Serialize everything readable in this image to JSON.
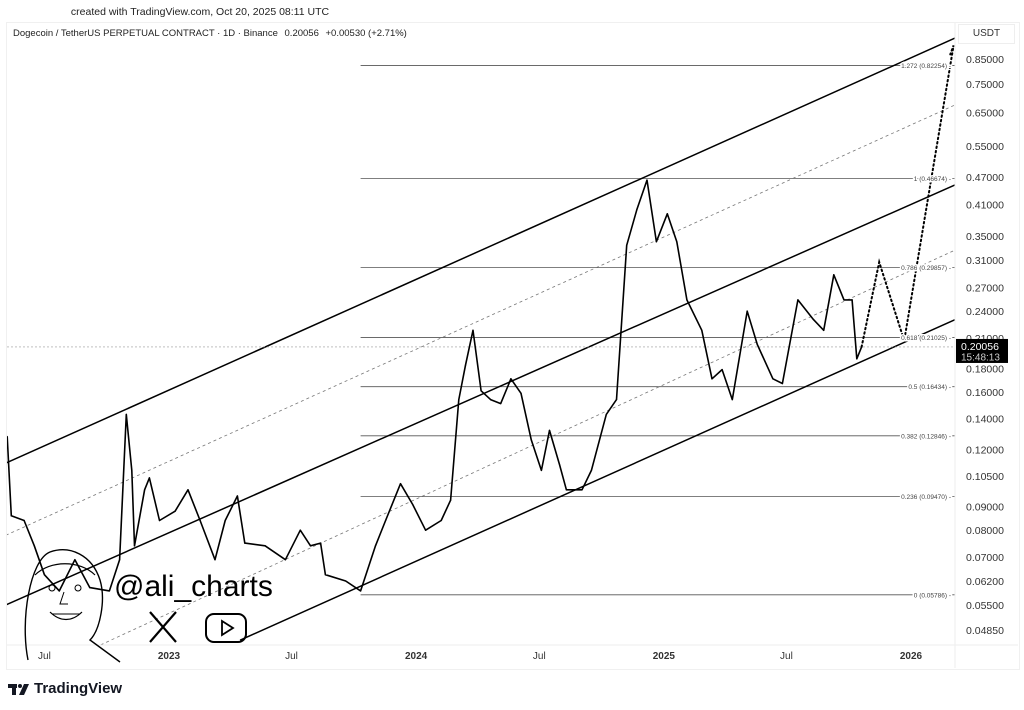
{
  "header": {
    "created": "created with TradingView.com, Oct 20, 2025 08:11 UTC",
    "symbol": "Dogecoin / TetherUS PERPETUAL CONTRACT · 1D · Binance",
    "price": "0.20056",
    "change": "+0.00530 (+2.71%)"
  },
  "currency": "USDT",
  "price_label": {
    "value": "0.20056",
    "countdown": "15:48:13"
  },
  "watermark": {
    "handle": "@ali_charts",
    "icons": [
      "x-logo-icon",
      "youtube-icon",
      "face-drawing"
    ]
  },
  "brand": "TradingView",
  "chart_data": {
    "type": "line",
    "scale": "log",
    "ylim": [
      0.0455,
      0.95
    ],
    "xlim": [
      "2022-05-05",
      "2026-03-07"
    ],
    "y_ticks": [
      0.85,
      0.75,
      0.65,
      0.55,
      0.47,
      0.41,
      0.35,
      0.31,
      0.27,
      0.24,
      0.21,
      0.18,
      0.16,
      0.14,
      0.12,
      0.105,
      0.09,
      0.08,
      0.07,
      0.062,
      0.055,
      0.0485
    ],
    "y_tick_labels": [
      "0.85000",
      "0.75000",
      "0.65000",
      "0.55000",
      "0.47000",
      "0.41000",
      "0.35000",
      "0.31000",
      "0.27000",
      "0.24000",
      "0.21000",
      "0.18000",
      "0.16000",
      "0.14000",
      "0.12000",
      "0.10500",
      "0.09000",
      "0.08000",
      "0.07000",
      "0.06200",
      "0.05500",
      "0.04850"
    ],
    "x_ticks": [
      {
        "date": "2022-07-01",
        "label": "Jul",
        "bold": false
      },
      {
        "date": "2023-01-01",
        "label": "2023",
        "bold": true
      },
      {
        "date": "2023-07-01",
        "label": "Jul",
        "bold": false
      },
      {
        "date": "2024-01-01",
        "label": "2024",
        "bold": true
      },
      {
        "date": "2024-07-01",
        "label": "Jul",
        "bold": false
      },
      {
        "date": "2025-01-01",
        "label": "2025",
        "bold": true
      },
      {
        "date": "2025-07-01",
        "label": "Jul",
        "bold": false
      },
      {
        "date": "2026-01-01",
        "label": "2026",
        "bold": true
      }
    ],
    "series": [
      {
        "values": [
          [
            "2022-05-07",
            0.128
          ],
          [
            "2022-05-13",
            0.086
          ],
          [
            "2022-06-01",
            0.084
          ],
          [
            "2022-06-16",
            0.074
          ],
          [
            "2022-07-01",
            0.064
          ],
          [
            "2022-07-23",
            0.059
          ],
          [
            "2022-08-15",
            0.069
          ],
          [
            "2022-09-06",
            0.06
          ],
          [
            "2022-10-05",
            0.059
          ],
          [
            "2022-10-20",
            0.069
          ],
          [
            "2022-10-30",
            0.143
          ],
          [
            "2022-11-07",
            0.108
          ],
          [
            "2022-11-11",
            0.074
          ],
          [
            "2022-11-26",
            0.098
          ],
          [
            "2022-12-03",
            0.104
          ],
          [
            "2022-12-18",
            0.084
          ],
          [
            "2023-01-10",
            0.088
          ],
          [
            "2023-01-29",
            0.098
          ],
          [
            "2023-02-16",
            0.084
          ],
          [
            "2023-03-10",
            0.069
          ],
          [
            "2023-03-25",
            0.084
          ],
          [
            "2023-04-12",
            0.095
          ],
          [
            "2023-04-23",
            0.075
          ],
          [
            "2023-05-23",
            0.074
          ],
          [
            "2023-06-22",
            0.069
          ],
          [
            "2023-07-14",
            0.08
          ],
          [
            "2023-07-29",
            0.074
          ],
          [
            "2023-08-13",
            0.075
          ],
          [
            "2023-08-20",
            0.064
          ],
          [
            "2023-09-19",
            0.062
          ],
          [
            "2023-10-11",
            0.059
          ],
          [
            "2023-11-02",
            0.074
          ],
          [
            "2023-11-17",
            0.084
          ],
          [
            "2023-12-09",
            0.101
          ],
          [
            "2023-12-27",
            0.091
          ],
          [
            "2024-01-15",
            0.08
          ],
          [
            "2024-02-07",
            0.084
          ],
          [
            "2024-02-21",
            0.093
          ],
          [
            "2024-03-04",
            0.154
          ],
          [
            "2024-03-14",
            0.183
          ],
          [
            "2024-03-25",
            0.218
          ],
          [
            "2024-04-06",
            0.161
          ],
          [
            "2024-04-20",
            0.154
          ],
          [
            "2024-05-05",
            0.151
          ],
          [
            "2024-05-20",
            0.171
          ],
          [
            "2024-06-04",
            0.159
          ],
          [
            "2024-06-19",
            0.126
          ],
          [
            "2024-07-04",
            0.108
          ],
          [
            "2024-07-16",
            0.132
          ],
          [
            "2024-07-31",
            0.111
          ],
          [
            "2024-08-10",
            0.098
          ],
          [
            "2024-09-02",
            0.098
          ],
          [
            "2024-09-16",
            0.108
          ],
          [
            "2024-10-08",
            0.143
          ],
          [
            "2024-10-23",
            0.154
          ],
          [
            "2024-11-07",
            0.334
          ],
          [
            "2024-11-22",
            0.399
          ],
          [
            "2024-12-07",
            0.463
          ],
          [
            "2024-12-21",
            0.34
          ],
          [
            "2025-01-06",
            0.391
          ],
          [
            "2025-01-20",
            0.34
          ],
          [
            "2025-02-04",
            0.254
          ],
          [
            "2025-02-26",
            0.218
          ],
          [
            "2025-03-13",
            0.171
          ],
          [
            "2025-03-28",
            0.179
          ],
          [
            "2025-04-12",
            0.154
          ],
          [
            "2025-05-04",
            0.24
          ],
          [
            "2025-05-19",
            0.203
          ],
          [
            "2025-06-11",
            0.171
          ],
          [
            "2025-06-25",
            0.167
          ],
          [
            "2025-07-18",
            0.254
          ],
          [
            "2025-08-10",
            0.23
          ],
          [
            "2025-08-25",
            0.218
          ],
          [
            "2025-09-09",
            0.288
          ],
          [
            "2025-09-24",
            0.254
          ],
          [
            "2025-10-06",
            0.254
          ],
          [
            "2025-10-13",
            0.189
          ],
          [
            "2025-10-20",
            0.2006
          ]
        ]
      }
    ],
    "projection": [
      [
        "2025-10-20",
        0.2006
      ],
      [
        "2025-11-15",
        0.307
      ],
      [
        "2025-12-22",
        0.207
      ],
      [
        "2026-03-05",
        0.91
      ],
      [
        "2026-02-28",
        0.87
      ]
    ],
    "channel_lines": [
      {
        "style": "solid",
        "from": [
          "2022-05-05",
          0.112
        ],
        "to": [
          "2026-03-07",
          0.944
        ]
      },
      {
        "style": "solid",
        "from": [
          "2022-05-05",
          0.055
        ],
        "to": [
          "2026-03-07",
          0.452
        ]
      },
      {
        "style": "solid",
        "from": [
          "2023-04-16",
          0.0461
        ],
        "to": [
          "2026-03-07",
          0.23
        ]
      },
      {
        "style": "dashed",
        "from": [
          "2022-05-05",
          0.078
        ],
        "to": [
          "2026-03-07",
          0.675
        ]
      },
      {
        "style": "dashed",
        "from": [
          "2022-09-06",
          0.0439
        ],
        "to": [
          "2026-03-07",
          0.326
        ]
      }
    ],
    "fib_levels": [
      {
        "label": "1.272 (0.82254)",
        "value": 0.82254
      },
      {
        "label": "1 (0.46674)",
        "value": 0.46674
      },
      {
        "label": "0.786 (0.29857)",
        "value": 0.29857
      },
      {
        "label": "0.618 (0.21025)",
        "value": 0.21025
      },
      {
        "label": "0.5 (0.16434)",
        "value": 0.16434
      },
      {
        "label": "0.382 (0.12846)",
        "value": 0.12846
      },
      {
        "label": "0.236 (0.09470)",
        "value": 0.0947
      },
      {
        "label": "0 (0.05786)",
        "value": 0.05786
      }
    ],
    "fib_start": "2023-10-11",
    "current_price": 0.20056,
    "grid": false
  }
}
